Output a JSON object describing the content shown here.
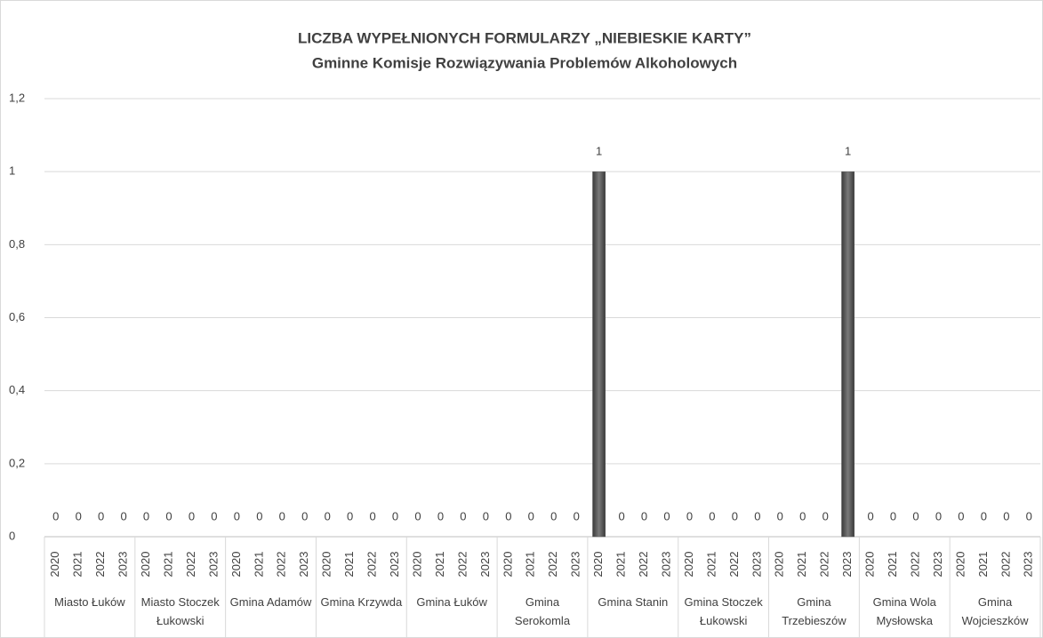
{
  "chart_data": {
    "type": "bar",
    "title": "LICZBA WYPEŁNIONYCH FORMULARZY „NIEBIESKIE KARTY”",
    "subtitle": "Gminne Komisje Rozwiązywania Problemów Alkoholowych",
    "category_groups": [
      "Miasto Łuków",
      "Miasto Stoczek Łukowski",
      "Gmina Adamów",
      "Gmina Krzywda",
      "Gmina Łuków",
      "Gmina Serokomla",
      "Gmina Stanin",
      "Gmina Stoczek Łukowski",
      "Gmina Trzebieszów",
      "Gmina Wola Mysłowska",
      "Gmina Wojcieszków"
    ],
    "categories": [
      "2020",
      "2021",
      "2022",
      "2023",
      "2020",
      "2021",
      "2022",
      "2023",
      "2020",
      "2021",
      "2022",
      "2023",
      "2020",
      "2021",
      "2022",
      "2023",
      "2020",
      "2021",
      "2022",
      "2023",
      "2020",
      "2021",
      "2022",
      "2023",
      "2020",
      "2021",
      "2022",
      "2023",
      "2020",
      "2021",
      "2022",
      "2023",
      "2020",
      "2021",
      "2022",
      "2023",
      "2020",
      "2021",
      "2022",
      "2023",
      "2020",
      "2021",
      "2022",
      "2023"
    ],
    "values": [
      0,
      0,
      0,
      0,
      0,
      0,
      0,
      0,
      0,
      0,
      0,
      0,
      0,
      0,
      0,
      0,
      0,
      0,
      0,
      0,
      0,
      0,
      0,
      0,
      1,
      0,
      0,
      0,
      0,
      0,
      0,
      0,
      0,
      0,
      0,
      1,
      0,
      0,
      0,
      0,
      0,
      0,
      0,
      0
    ],
    "color": "#595959",
    "ylim": [
      0,
      1.2
    ],
    "yticks": [
      0,
      {
        "value": 0.2,
        "label": "0,2"
      },
      {
        "value": 0.4,
        "label": "0,4"
      },
      {
        "value": 0.6,
        "label": "0,6"
      },
      {
        "value": 0.8,
        "label": "0,8"
      },
      1,
      {
        "value": 1.2,
        "label": "1,2"
      }
    ],
    "grid": true
  }
}
